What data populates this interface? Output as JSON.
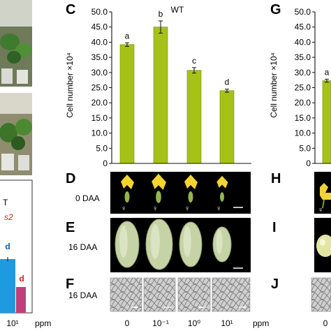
{
  "panels": {
    "C": "C",
    "D": "D",
    "E": "E",
    "F": "F",
    "G": "G",
    "H": "H",
    "I": "I",
    "J": "J"
  },
  "row_labels": {
    "D": "0 DAA",
    "E": "16 DAA",
    "F": "16 DAA"
  },
  "x_axis": {
    "ticks": [
      "0",
      "10⁻¹",
      "10⁰",
      "10¹"
    ],
    "unit": "ppm"
  },
  "left_fragment": {
    "legend_line1": "T",
    "legend_line2": "s2",
    "letter_blue": "d",
    "letter_red": "d",
    "x_tick": "10¹",
    "x_unit": "ppm"
  },
  "right_fragment": {
    "first_bar_letter": "a",
    "x_tick": "0"
  },
  "female_symbol": "♀",
  "colors": {
    "bar": "#a7c217",
    "bar_edge": "#6f8a00",
    "blue_bar": "#1e9be0",
    "pink_bar": "#c0407a",
    "red_text": "#d61d1d",
    "photo_bg": "#000000"
  },
  "chart_data": [
    {
      "type": "bar",
      "title": "WT",
      "ylabel": "Cell number ×10⁴",
      "ylim": [
        0,
        50
      ],
      "yticks": [
        "0",
        "5.0",
        "10.0",
        "15.0",
        "20.0",
        "25.0",
        "30.0",
        "35.0",
        "40.0",
        "45.0",
        "50.0"
      ],
      "categories": [
        "0",
        "10⁻¹",
        "10⁰",
        "10¹"
      ],
      "values": [
        39.2,
        45.0,
        30.7,
        24.0
      ],
      "errors": [
        0.6,
        2.0,
        0.9,
        0.5
      ],
      "letters": [
        "a",
        "b",
        "c",
        "d"
      ],
      "grid": false
    },
    {
      "type": "bar",
      "title": "",
      "ylabel": "Cell number ×10⁴",
      "ylim": [
        0,
        50
      ],
      "yticks": [
        "0",
        "5.0",
        "10.0",
        "15.0",
        "20.0",
        "25.0",
        "30.0",
        "35.0",
        "40.0",
        "45.0",
        "50.0"
      ],
      "categories": [
        "0"
      ],
      "values": [
        27.3
      ],
      "errors": [
        0.5
      ],
      "letters": [
        "a"
      ],
      "grid": false
    }
  ]
}
